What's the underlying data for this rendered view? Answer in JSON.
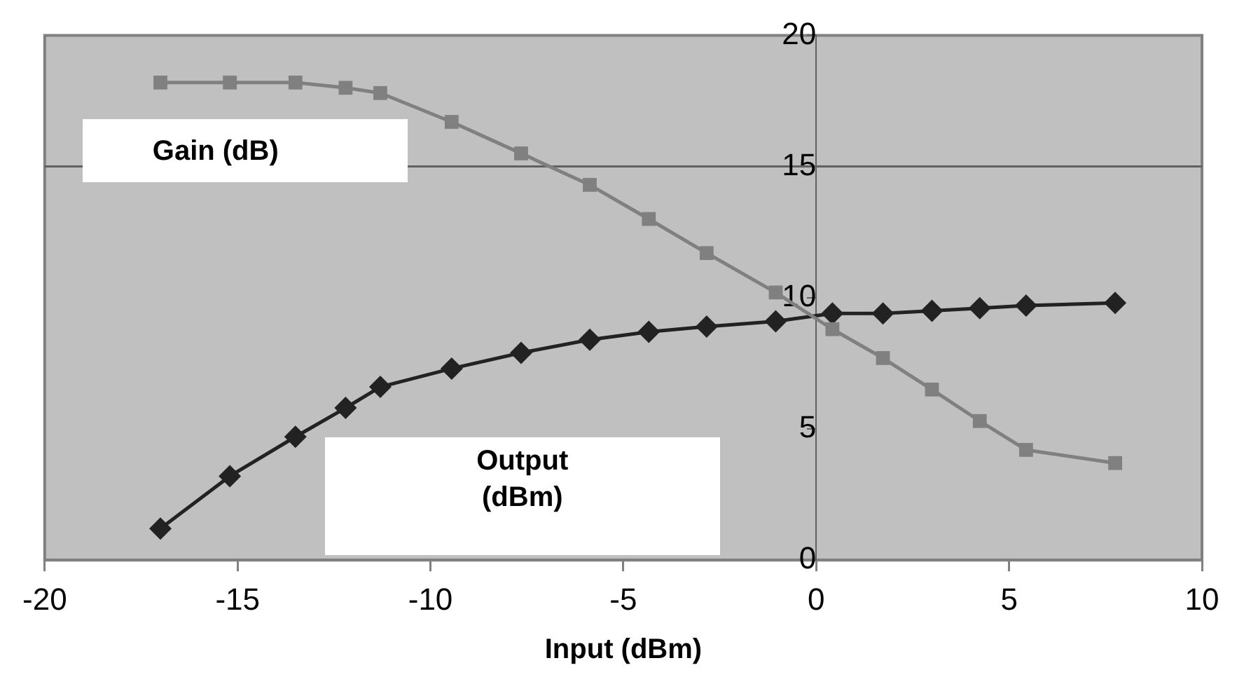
{
  "chart_data": {
    "type": "line",
    "xlabel": "Input (dBm)",
    "xlim": [
      -20,
      10
    ],
    "xticks": [
      -20,
      -15,
      -10,
      -5,
      0,
      5,
      10
    ],
    "ylim": [
      0,
      20
    ],
    "yticks": [
      0,
      5,
      10,
      15,
      20
    ],
    "grid": false,
    "legend": false,
    "line_style": "solid",
    "ref_lines": [
      {
        "axis": "y",
        "value": 15,
        "color": "#606060"
      }
    ],
    "series": [
      {
        "name": "Gain (dB)",
        "color": "#808080",
        "marker": "square",
        "x": [
          -17,
          -15.2,
          -13.5,
          -12.2,
          -11.3,
          -9.45,
          -7.65,
          -5.87,
          -4.34,
          -2.84,
          -1.05,
          0.42,
          1.73,
          3.0,
          4.24,
          5.44,
          7.75
        ],
        "values": [
          18.2,
          18.2,
          18.2,
          18.0,
          17.8,
          16.7,
          15.5,
          14.3,
          13.0,
          11.7,
          10.2,
          8.8,
          7.7,
          6.5,
          5.3,
          4.2,
          3.7
        ]
      },
      {
        "name": "Output (dBm)",
        "color": "#222222",
        "marker": "diamond",
        "x": [
          -17,
          -15.2,
          -13.5,
          -12.2,
          -11.3,
          -9.45,
          -7.65,
          -5.87,
          -4.34,
          -2.84,
          -1.05,
          0.42,
          1.73,
          3.0,
          4.24,
          5.44,
          7.75
        ],
        "values": [
          1.2,
          3.2,
          4.7,
          5.8,
          6.6,
          7.3,
          7.9,
          8.4,
          8.7,
          8.9,
          9.1,
          9.4,
          9.4,
          9.5,
          9.6,
          9.7,
          9.8
        ]
      }
    ]
  }
}
